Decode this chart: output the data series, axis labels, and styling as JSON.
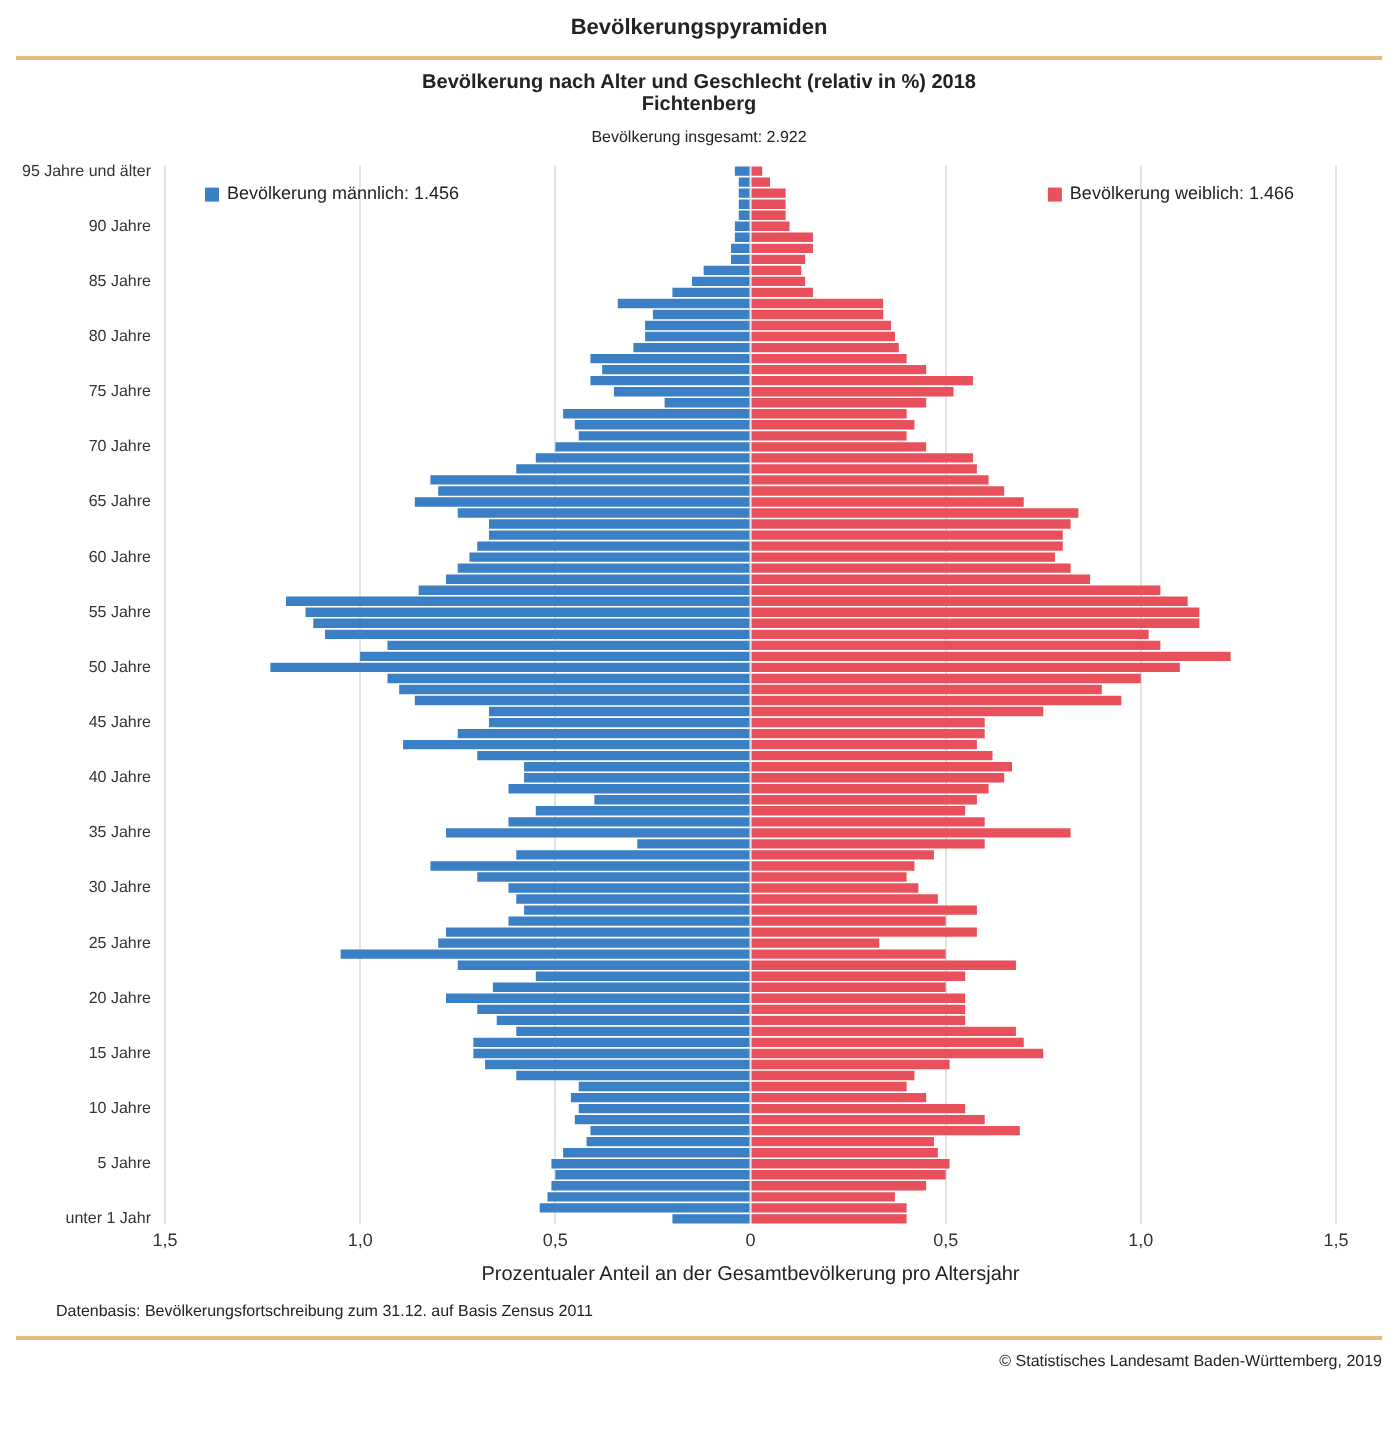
{
  "chart_data": {
    "type": "bar",
    "orientation": "horizontal",
    "stacked": true,
    "title": "Bevölkerungspyramiden",
    "subtitle": "Bevölkerung nach Alter und Geschlecht (relativ in %) 2018",
    "xlabel": "Prozentualer Anteil an der Gesamtbevölkerung pro Altersjahr",
    "annotations": [
      "Fichtenberg",
      "Bevölkerung insgesamt: 2.922",
      "Datenbasis: Bevölkerungsfortschreibung zum 31.12. auf Basis Zensus 2011",
      "© Statistisches Landesamt Baden-Württemberg, 2019"
    ],
    "categories": [
      "95 Jahre und älter",
      null,
      null,
      null,
      null,
      "90 Jahre",
      null,
      null,
      null,
      null,
      "85 Jahre",
      null,
      null,
      null,
      null,
      "80 Jahre",
      null,
      null,
      null,
      null,
      "75 Jahre",
      null,
      null,
      null,
      null,
      "70 Jahre",
      null,
      null,
      null,
      null,
      "65 Jahre",
      null,
      null,
      null,
      null,
      "60 Jahre",
      null,
      null,
      null,
      null,
      "55 Jahre",
      null,
      null,
      null,
      null,
      "50 Jahre",
      null,
      null,
      null,
      null,
      "45 Jahre",
      null,
      null,
      null,
      null,
      "40 Jahre",
      null,
      null,
      null,
      null,
      "35 Jahre",
      null,
      null,
      null,
      null,
      "30 Jahre",
      null,
      null,
      null,
      null,
      "25 Jahre",
      null,
      null,
      null,
      null,
      "20 Jahre",
      null,
      null,
      null,
      null,
      "15 Jahre",
      null,
      null,
      null,
      null,
      "10 Jahre",
      null,
      null,
      null,
      null,
      "5 Jahre",
      null,
      null,
      null,
      null,
      "unter 1 Jahr"
    ],
    "series": [
      {
        "name": "Bevölkerung männlich: 1.456",
        "color": "#3b7fc4",
        "values": [
          -0.04,
          -0.03,
          -0.03,
          -0.03,
          -0.03,
          -0.04,
          -0.04,
          -0.05,
          -0.05,
          -0.12,
          -0.15,
          -0.2,
          -0.34,
          -0.25,
          -0.27,
          -0.27,
          -0.3,
          -0.41,
          -0.38,
          -0.41,
          -0.35,
          -0.22,
          -0.48,
          -0.45,
          -0.44,
          -0.5,
          -0.55,
          -0.6,
          -0.82,
          -0.8,
          -0.86,
          -0.75,
          -0.67,
          -0.67,
          -0.7,
          -0.72,
          -0.75,
          -0.78,
          -0.85,
          -1.19,
          -1.14,
          -1.12,
          -1.09,
          -0.93,
          -1.0,
          -1.23,
          -0.93,
          -0.9,
          -0.86,
          -0.67,
          -0.67,
          -0.75,
          -0.89,
          -0.7,
          -0.58,
          -0.58,
          -0.62,
          -0.4,
          -0.55,
          -0.62,
          -0.78,
          -0.29,
          -0.6,
          -0.82,
          -0.7,
          -0.62,
          -0.6,
          -0.58,
          -0.62,
          -0.78,
          -0.8,
          -1.05,
          -0.75,
          -0.55,
          -0.66,
          -0.78,
          -0.7,
          -0.65,
          -0.6,
          -0.71,
          -0.71,
          -0.68,
          -0.6,
          -0.44,
          -0.46,
          -0.44,
          -0.45,
          -0.41,
          -0.42,
          -0.48,
          -0.51,
          -0.5,
          -0.51,
          -0.52,
          -0.54,
          -0.2
        ]
      },
      {
        "name": "Bevölkerung weiblich: 1.466",
        "color": "#e8505b",
        "values": [
          0.03,
          0.05,
          0.09,
          0.09,
          0.09,
          0.1,
          0.16,
          0.16,
          0.14,
          0.13,
          0.14,
          0.16,
          0.34,
          0.34,
          0.36,
          0.37,
          0.38,
          0.4,
          0.45,
          0.57,
          0.52,
          0.45,
          0.4,
          0.42,
          0.4,
          0.45,
          0.57,
          0.58,
          0.61,
          0.65,
          0.7,
          0.84,
          0.82,
          0.8,
          0.8,
          0.78,
          0.82,
          0.87,
          1.05,
          1.12,
          1.15,
          1.15,
          1.02,
          1.05,
          1.23,
          1.1,
          1.0,
          0.9,
          0.95,
          0.75,
          0.6,
          0.6,
          0.58,
          0.62,
          0.67,
          0.65,
          0.61,
          0.58,
          0.55,
          0.6,
          0.82,
          0.6,
          0.47,
          0.42,
          0.4,
          0.43,
          0.48,
          0.58,
          0.5,
          0.58,
          0.33,
          0.5,
          0.68,
          0.55,
          0.5,
          0.55,
          0.55,
          0.55,
          0.68,
          0.7,
          0.75,
          0.51,
          0.42,
          0.4,
          0.45,
          0.55,
          0.6,
          0.69,
          0.47,
          0.48,
          0.51,
          0.5,
          0.45,
          0.37,
          0.4,
          0.4
        ]
      }
    ],
    "xlim": [
      -1.5,
      1.5
    ],
    "xticks": [
      {
        "value": -1.5,
        "label": "1,5"
      },
      {
        "value": -1,
        "label": "1,0"
      },
      {
        "value": -0.5,
        "label": "0,5"
      },
      0,
      {
        "value": 0.5,
        "label": "0,5"
      },
      {
        "value": 1,
        "label": "1,0"
      },
      {
        "value": 1.5,
        "label": "1,5"
      }
    ],
    "grid": "x",
    "legend": "top"
  }
}
